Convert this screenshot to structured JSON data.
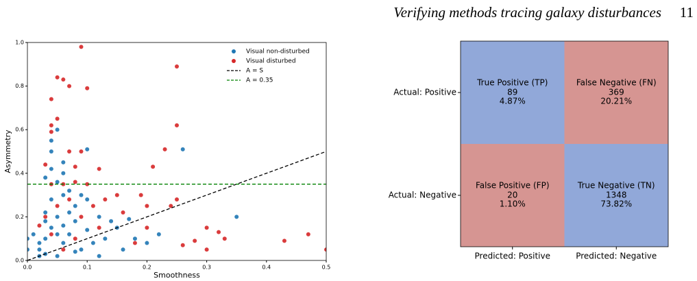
{
  "header": {
    "title": "Verifying methods tracing galaxy disturbances",
    "page_number": "11"
  },
  "chart_data": [
    {
      "type": "scatter",
      "xlabel": "Smoothness",
      "ylabel": "Asymmetry",
      "xlim": [
        0,
        0.5
      ],
      "xticks": [
        {
          "value": 0,
          "label": "0.0"
        },
        0.1,
        0.2,
        0.3,
        0.4,
        0.5
      ],
      "ylim": [
        0,
        1
      ],
      "yticks": [
        {
          "value": 0,
          "label": "0.0"
        },
        0.2,
        0.4,
        0.6,
        0.8,
        {
          "value": 1,
          "label": "1.0"
        }
      ],
      "legend": "upper right",
      "series": [
        {
          "name": "Visual non-disturbed",
          "color": "#1f77b4",
          "x": [
            0.02,
            0.03,
            0.04,
            0.05,
            0.06,
            0.03,
            0.05,
            0.04,
            0.04,
            0.06,
            0.1,
            0.26,
            0.35,
            0.03,
            0.05,
            0.07,
            0.09,
            0.08,
            0.12,
            0.15,
            0.18,
            0.2,
            0.02,
            0.01,
            0.03,
            0.07,
            0.09,
            0.11,
            0.13,
            0.16,
            0.05,
            0.04,
            0.06,
            0.08,
            0.1,
            0.02,
            0.03,
            0.06,
            0.07,
            0.05,
            0.14,
            0.17,
            0.22,
            0.0,
            0.0,
            0.08,
            0.12,
            0.1,
            0.04,
            0.06
          ],
          "values": [
            0.05,
            0.1,
            0.15,
            0.2,
            0.08,
            0.22,
            0.6,
            0.55,
            0.5,
            0.45,
            0.51,
            0.51,
            0.2,
            0.38,
            0.36,
            0.32,
            0.3,
            0.25,
            0.2,
            0.15,
            0.1,
            0.08,
            0.02,
            0.12,
            0.18,
            0.12,
            0.05,
            0.08,
            0.1,
            0.05,
            0.02,
            0.28,
            0.3,
            0.18,
            0.14,
            0.08,
            0.03,
            0.16,
            0.22,
            0.12,
            0.18,
            0.19,
            0.12,
            0.1,
            0.05,
            0.04,
            0.02,
            0.28,
            0.42,
            0.4
          ]
        },
        {
          "name": "Visual disturbed",
          "color": "#d62728",
          "x": [
            0.09,
            0.05,
            0.06,
            0.04,
            0.25,
            0.07,
            0.1,
            0.05,
            0.04,
            0.25,
            0.04,
            0.07,
            0.09,
            0.23,
            0.12,
            0.08,
            0.21,
            0.03,
            0.1,
            0.15,
            0.2,
            0.25,
            0.3,
            0.3,
            0.33,
            0.43,
            0.47,
            0.5,
            0.28,
            0.26,
            0.18,
            0.2,
            0.12,
            0.08,
            0.06,
            0.04,
            0.03,
            0.05,
            0.07,
            0.02,
            0.09,
            0.11,
            0.13,
            0.16,
            0.06,
            0.04,
            0.08,
            0.32,
            0.24,
            0.19
          ],
          "values": [
            0.98,
            0.84,
            0.83,
            0.74,
            0.89,
            0.8,
            0.79,
            0.65,
            0.59,
            0.62,
            0.62,
            0.5,
            0.5,
            0.51,
            0.42,
            0.43,
            0.43,
            0.44,
            0.35,
            0.3,
            0.25,
            0.28,
            0.15,
            0.05,
            0.1,
            0.09,
            0.12,
            0.05,
            0.09,
            0.07,
            0.08,
            0.15,
            0.15,
            0.1,
            0.05,
            0.12,
            0.2,
            0.25,
            0.28,
            0.16,
            0.2,
            0.25,
            0.28,
            0.22,
            0.35,
            0.35,
            0.36,
            0.13,
            0.25,
            0.3
          ]
        },
        {
          "name": "A = S",
          "color": "#000000",
          "line_style": "dashed",
          "x": [
            0,
            0.5
          ],
          "values": [
            0,
            0.5
          ]
        },
        {
          "name": "A = 0.35",
          "color": "#008000",
          "line_style": "dashed",
          "x": [
            0,
            0.5
          ],
          "values": [
            0.35,
            0.35
          ]
        }
      ]
    },
    {
      "type": "heatmap",
      "x_categories": [
        "Predicted: Positive",
        "Predicted: Negative"
      ],
      "y_categories": [
        "Actual: Positive",
        "Actual: Negative"
      ],
      "cell_labels": [
        [
          "True Positive (TP)",
          "False Negative (FN)"
        ],
        [
          "False Positive (FP)",
          "True Negative (TN)"
        ]
      ],
      "values": [
        [
          89,
          369
        ],
        [
          20,
          1348
        ]
      ],
      "percents": [
        [
          4.87,
          20.21
        ],
        [
          1.1,
          73.82
        ]
      ],
      "percent_labels": [
        [
          "4.87%",
          "20.21%"
        ],
        [
          "1.10%",
          "73.82%"
        ]
      ],
      "colors": [
        [
          "#91a8d9",
          "#d69592"
        ],
        [
          "#d69592",
          "#91a8d9"
        ]
      ]
    }
  ]
}
